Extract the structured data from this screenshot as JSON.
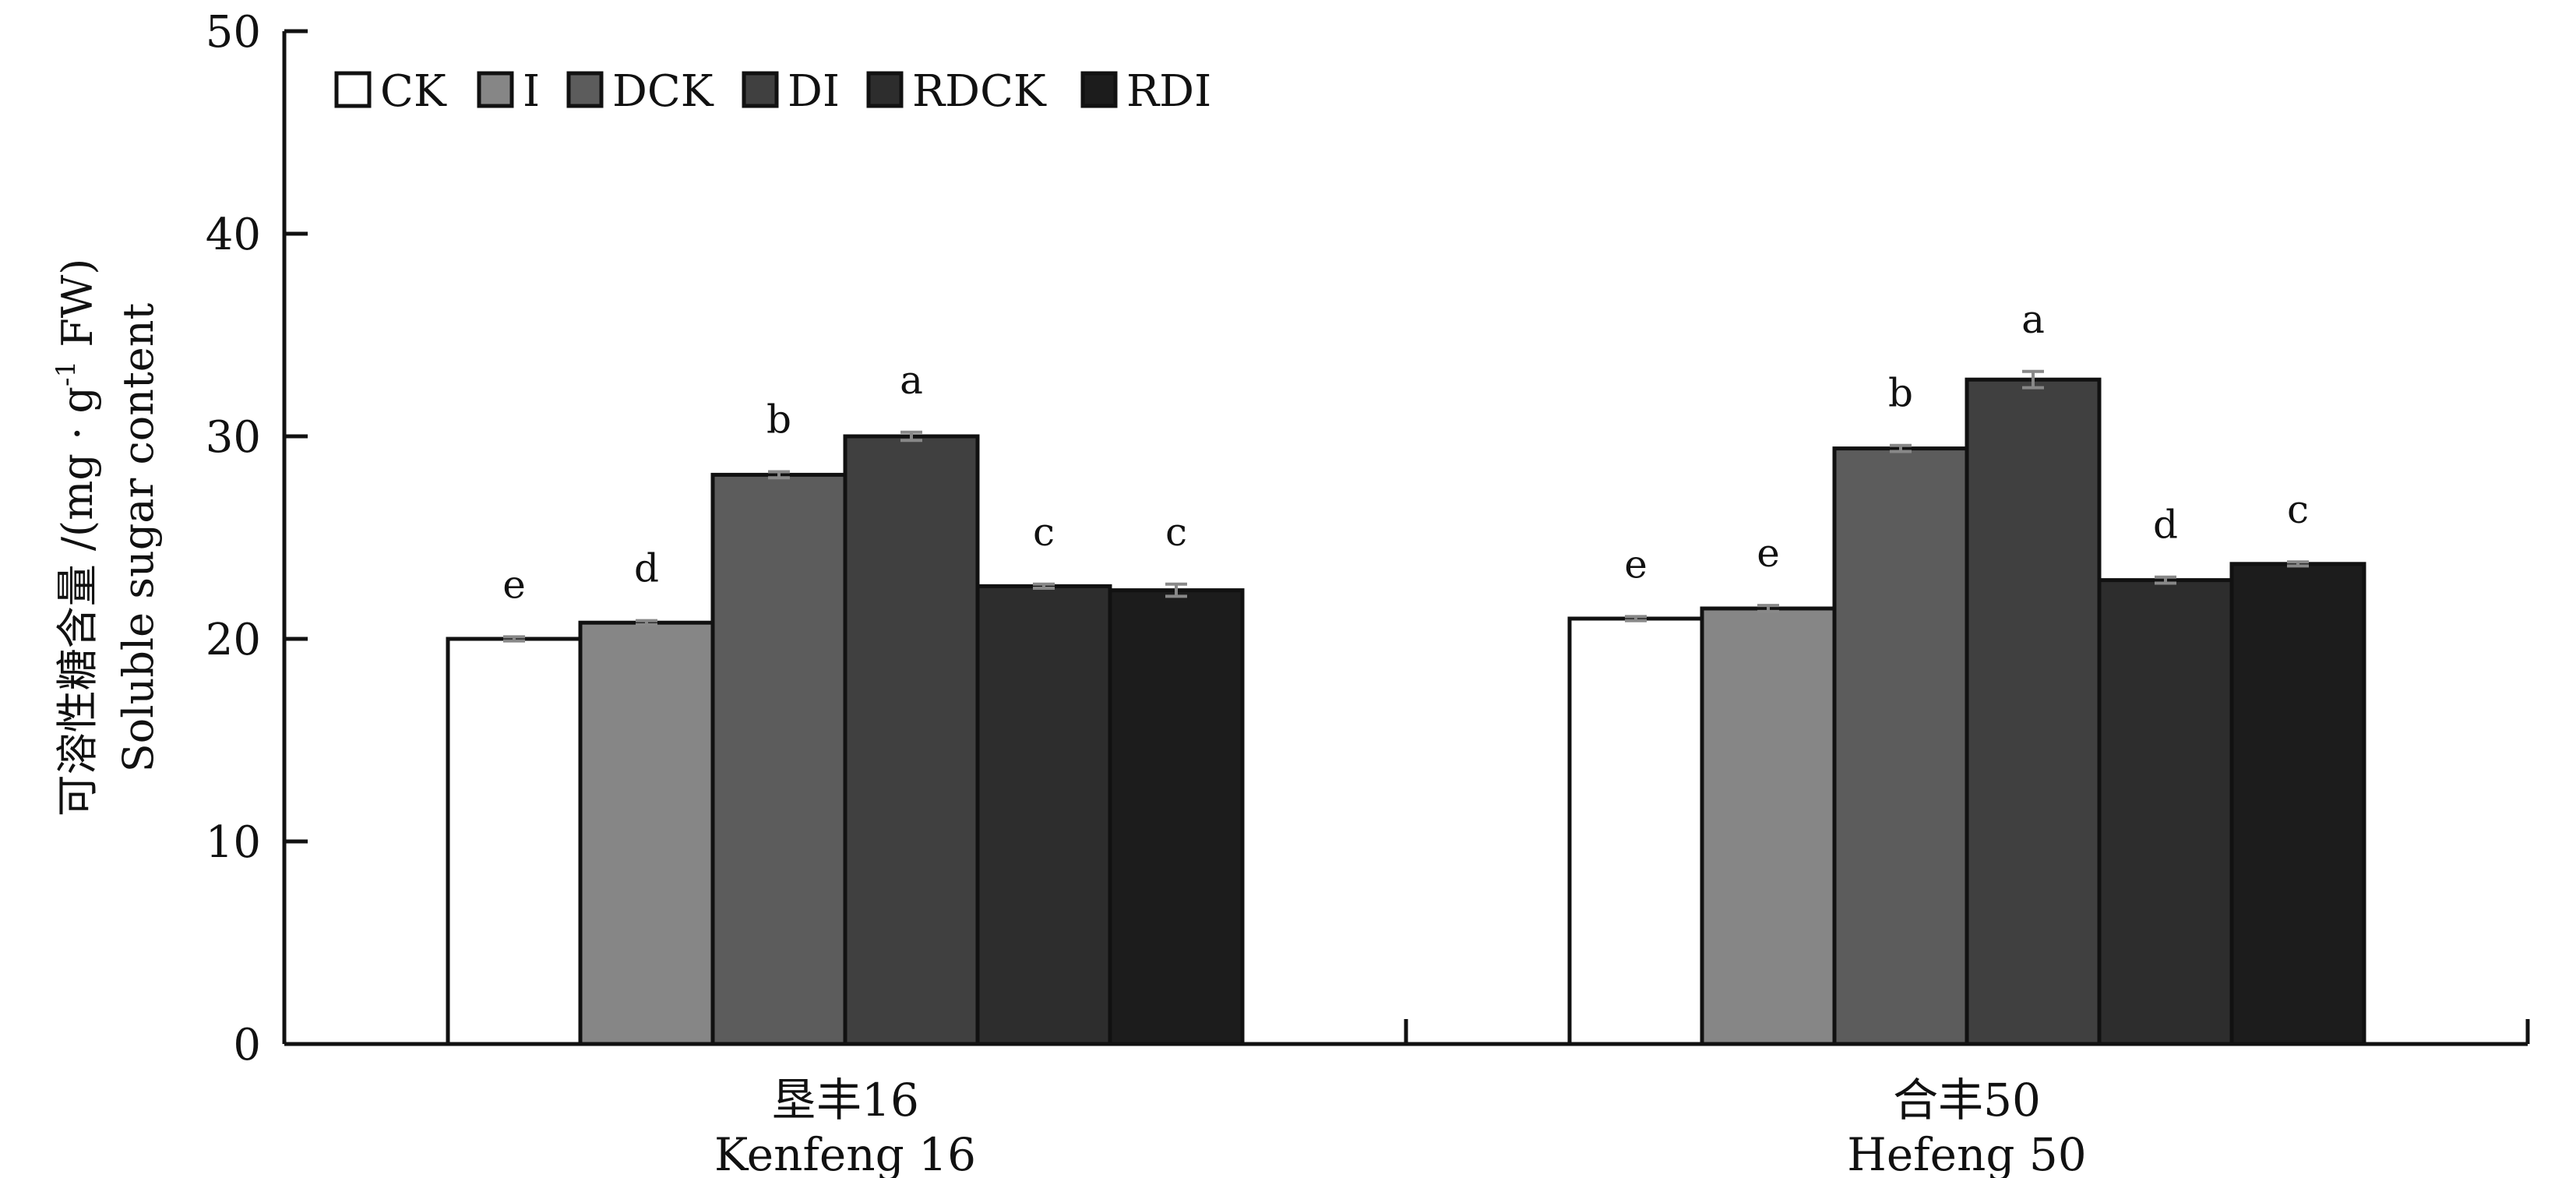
{
  "chart_data": {
    "type": "bar",
    "title": "",
    "ylabel_zh": "可溶性糖含量 /(mg · g",
    "ylabel_sup": "-1",
    "ylabel_zh_end": " FW)",
    "ylabel_en": "Soluble sugar content",
    "ylim": [
      0,
      50
    ],
    "yticks": [
      "0",
      "10",
      "20",
      "30",
      "40",
      "50"
    ],
    "categories_zh": [
      "垦丰16",
      "合丰50"
    ],
    "categories_en": [
      "Kenfeng 16",
      "Hefeng 50"
    ],
    "legend_position": "top-left",
    "grid": false,
    "series": [
      {
        "name": "CK",
        "color": "#ffffff",
        "values": [
          20.0,
          21.0
        ],
        "errors": [
          0.1,
          0.1
        ],
        "letters": [
          "e",
          "e"
        ]
      },
      {
        "name": "I",
        "color": "#868686",
        "values": [
          20.8,
          21.5
        ],
        "errors": [
          0.1,
          0.15
        ],
        "letters": [
          "d",
          "e"
        ]
      },
      {
        "name": "DCK",
        "color": "#5c5c5c",
        "values": [
          28.1,
          29.4
        ],
        "errors": [
          0.15,
          0.15
        ],
        "letters": [
          "b",
          "b"
        ]
      },
      {
        "name": "DI",
        "color": "#404040",
        "values": [
          30.0,
          32.8
        ],
        "errors": [
          0.2,
          0.4
        ],
        "letters": [
          "a",
          "a"
        ]
      },
      {
        "name": "RDCK",
        "color": "#2d2d2d",
        "values": [
          22.6,
          22.9
        ],
        "errors": [
          0.1,
          0.15
        ],
        "letters": [
          "c",
          "d"
        ]
      },
      {
        "name": "RDI",
        "color": "#1c1c1c",
        "values": [
          22.4,
          23.7
        ],
        "errors": [
          0.3,
          0.1
        ],
        "letters": [
          "c",
          "c"
        ]
      }
    ]
  }
}
